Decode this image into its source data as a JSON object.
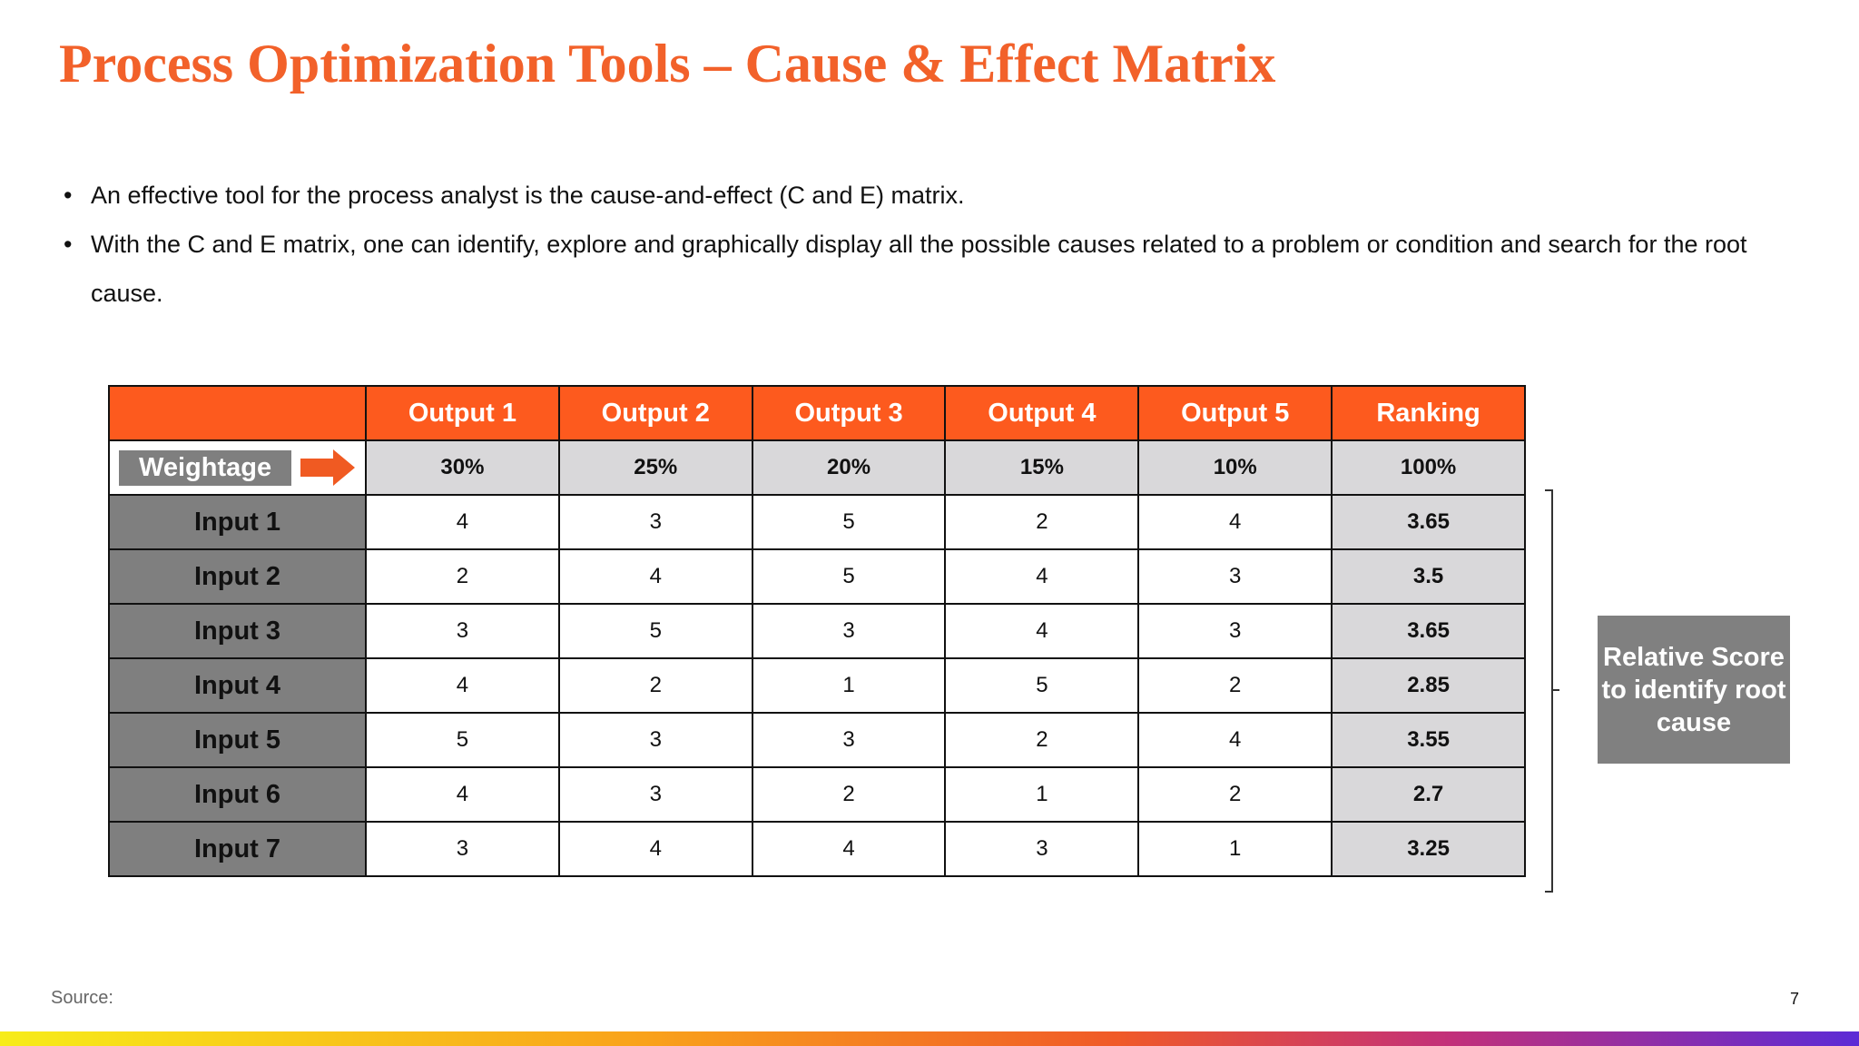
{
  "title": "Process Optimization Tools – Cause & Effect Matrix",
  "bullets": [
    "An effective tool for the process analyst is the cause-and-effect (C and E) matrix.",
    "With the C and E matrix, one can identify, explore and graphically display all the possible causes related to a problem or condition and search for the root cause."
  ],
  "table": {
    "header": [
      "Output 1",
      "Output 2",
      "Output 3",
      "Output 4",
      "Output 5",
      "Ranking"
    ],
    "weightage": {
      "label": "Weightage",
      "values": [
        "30%",
        "25%",
        "20%",
        "15%",
        "10%",
        "100%"
      ]
    },
    "rows": [
      [
        "Input 1",
        "4",
        "3",
        "5",
        "2",
        "4",
        "3.65"
      ],
      [
        "Input 2",
        "2",
        "4",
        "5",
        "4",
        "3",
        "3.5"
      ],
      [
        "Input 3",
        "3",
        "5",
        "3",
        "4",
        "3",
        "3.65"
      ],
      [
        "Input 4",
        "4",
        "2",
        "1",
        "5",
        "2",
        "2.85"
      ],
      [
        "Input 5",
        "5",
        "3",
        "3",
        "2",
        "4",
        "3.55"
      ],
      [
        "Input 6",
        "4",
        "3",
        "2",
        "1",
        "2",
        "2.7"
      ],
      [
        "Input 7",
        "3",
        "4",
        "4",
        "3",
        "1",
        "3.25"
      ]
    ]
  },
  "callout": "Relative Score to identify root cause",
  "footer": {
    "source": "Source:",
    "page": "7"
  }
}
